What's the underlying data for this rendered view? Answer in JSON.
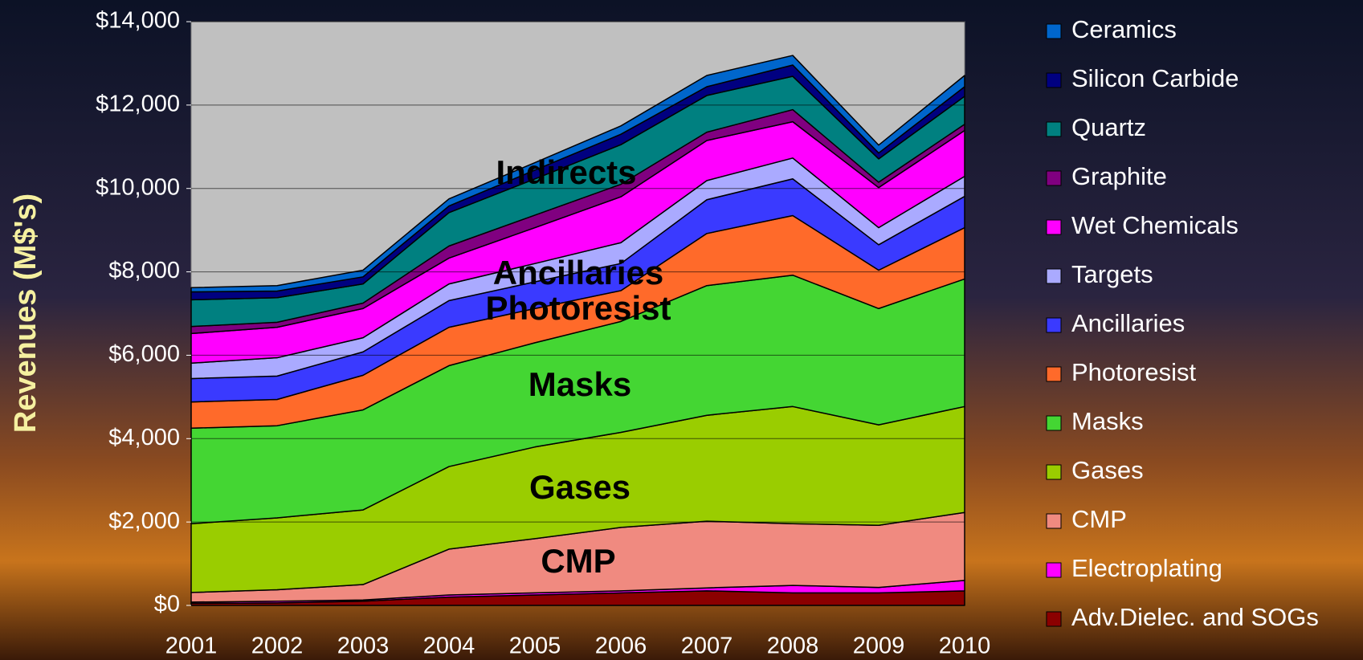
{
  "chart_data": {
    "type": "stacked_area",
    "y_label": "Revenues (M$'s)",
    "categories": [
      "2001",
      "2002",
      "2003",
      "2004",
      "2005",
      "2006",
      "2007",
      "2008",
      "2009",
      "2010"
    ],
    "ylim": [
      0,
      14000
    ],
    "yticks": [
      {
        "value": 0,
        "label": "$0"
      },
      {
        "value": 2000,
        "label": "$2,000"
      },
      {
        "value": 4000,
        "label": "$4,000"
      },
      {
        "value": 6000,
        "label": "$6,000"
      },
      {
        "value": 8000,
        "label": "$8,000"
      },
      {
        "value": 10000,
        "label": "$10,000"
      },
      {
        "value": 12000,
        "label": "$12,000"
      },
      {
        "value": 14000,
        "label": "$14,000"
      }
    ],
    "grid": true,
    "annotations": [
      "Indirects",
      "Ancillaries",
      "Photoresist",
      "Masks",
      "Gases",
      "CMP"
    ],
    "series": [
      {
        "name": "Adv.Dielec. and SOGs",
        "color": "#8b0000",
        "values": [
          50,
          60,
          100,
          200,
          250,
          300,
          350,
          300,
          300,
          350
        ]
      },
      {
        "name": "Electroplating",
        "color": "#ff00ff",
        "values": [
          30,
          40,
          30,
          50,
          50,
          50,
          70,
          180,
          130,
          250
        ]
      },
      {
        "name": "CMP",
        "color": "#f08a80",
        "values": [
          230,
          275,
          370,
          1100,
          1300,
          1520,
          1600,
          1480,
          1490,
          1630
        ]
      },
      {
        "name": "Gases",
        "color": "#9acd00",
        "values": [
          1650,
          1725,
          1790,
          1980,
          2200,
          2280,
          2540,
          2810,
          2410,
          2540
        ]
      },
      {
        "name": "Masks",
        "color": "#44d633",
        "values": [
          2290,
          2210,
          2400,
          2420,
          2500,
          2660,
          3110,
          3150,
          2790,
          3060
        ]
      },
      {
        "name": "Photoresist",
        "color": "#ff6a2a",
        "values": [
          630,
          630,
          830,
          920,
          820,
          740,
          1250,
          1430,
          920,
          1230
        ]
      },
      {
        "name": "Ancillaries",
        "color": "#3a3aff",
        "values": [
          560,
          560,
          560,
          640,
          640,
          650,
          810,
          880,
          610,
          750
        ]
      },
      {
        "name": "Targets",
        "color": "#aaaaff",
        "values": [
          370,
          440,
          340,
          400,
          440,
          500,
          460,
          500,
          410,
          480
        ]
      },
      {
        "name": "Wet Chemicals",
        "color": "#ff00ff",
        "values": [
          710,
          730,
          700,
          620,
          860,
          1100,
          960,
          870,
          960,
          1100
        ]
      },
      {
        "name": "Graphite",
        "color": "#800080",
        "values": [
          170,
          120,
          130,
          290,
          300,
          300,
          200,
          290,
          130,
          150
        ]
      },
      {
        "name": "Quartz",
        "color": "#008080",
        "values": [
          640,
          590,
          460,
          800,
          870,
          950,
          880,
          800,
          560,
          670
        ]
      },
      {
        "name": "Silicon Carbide",
        "color": "#000080",
        "values": [
          190,
          160,
          170,
          160,
          210,
          250,
          210,
          270,
          140,
          230
        ]
      },
      {
        "name": "Ceramics",
        "color": "#0066cc",
        "values": [
          100,
          130,
          160,
          170,
          180,
          200,
          270,
          230,
          190,
          270
        ]
      }
    ]
  }
}
